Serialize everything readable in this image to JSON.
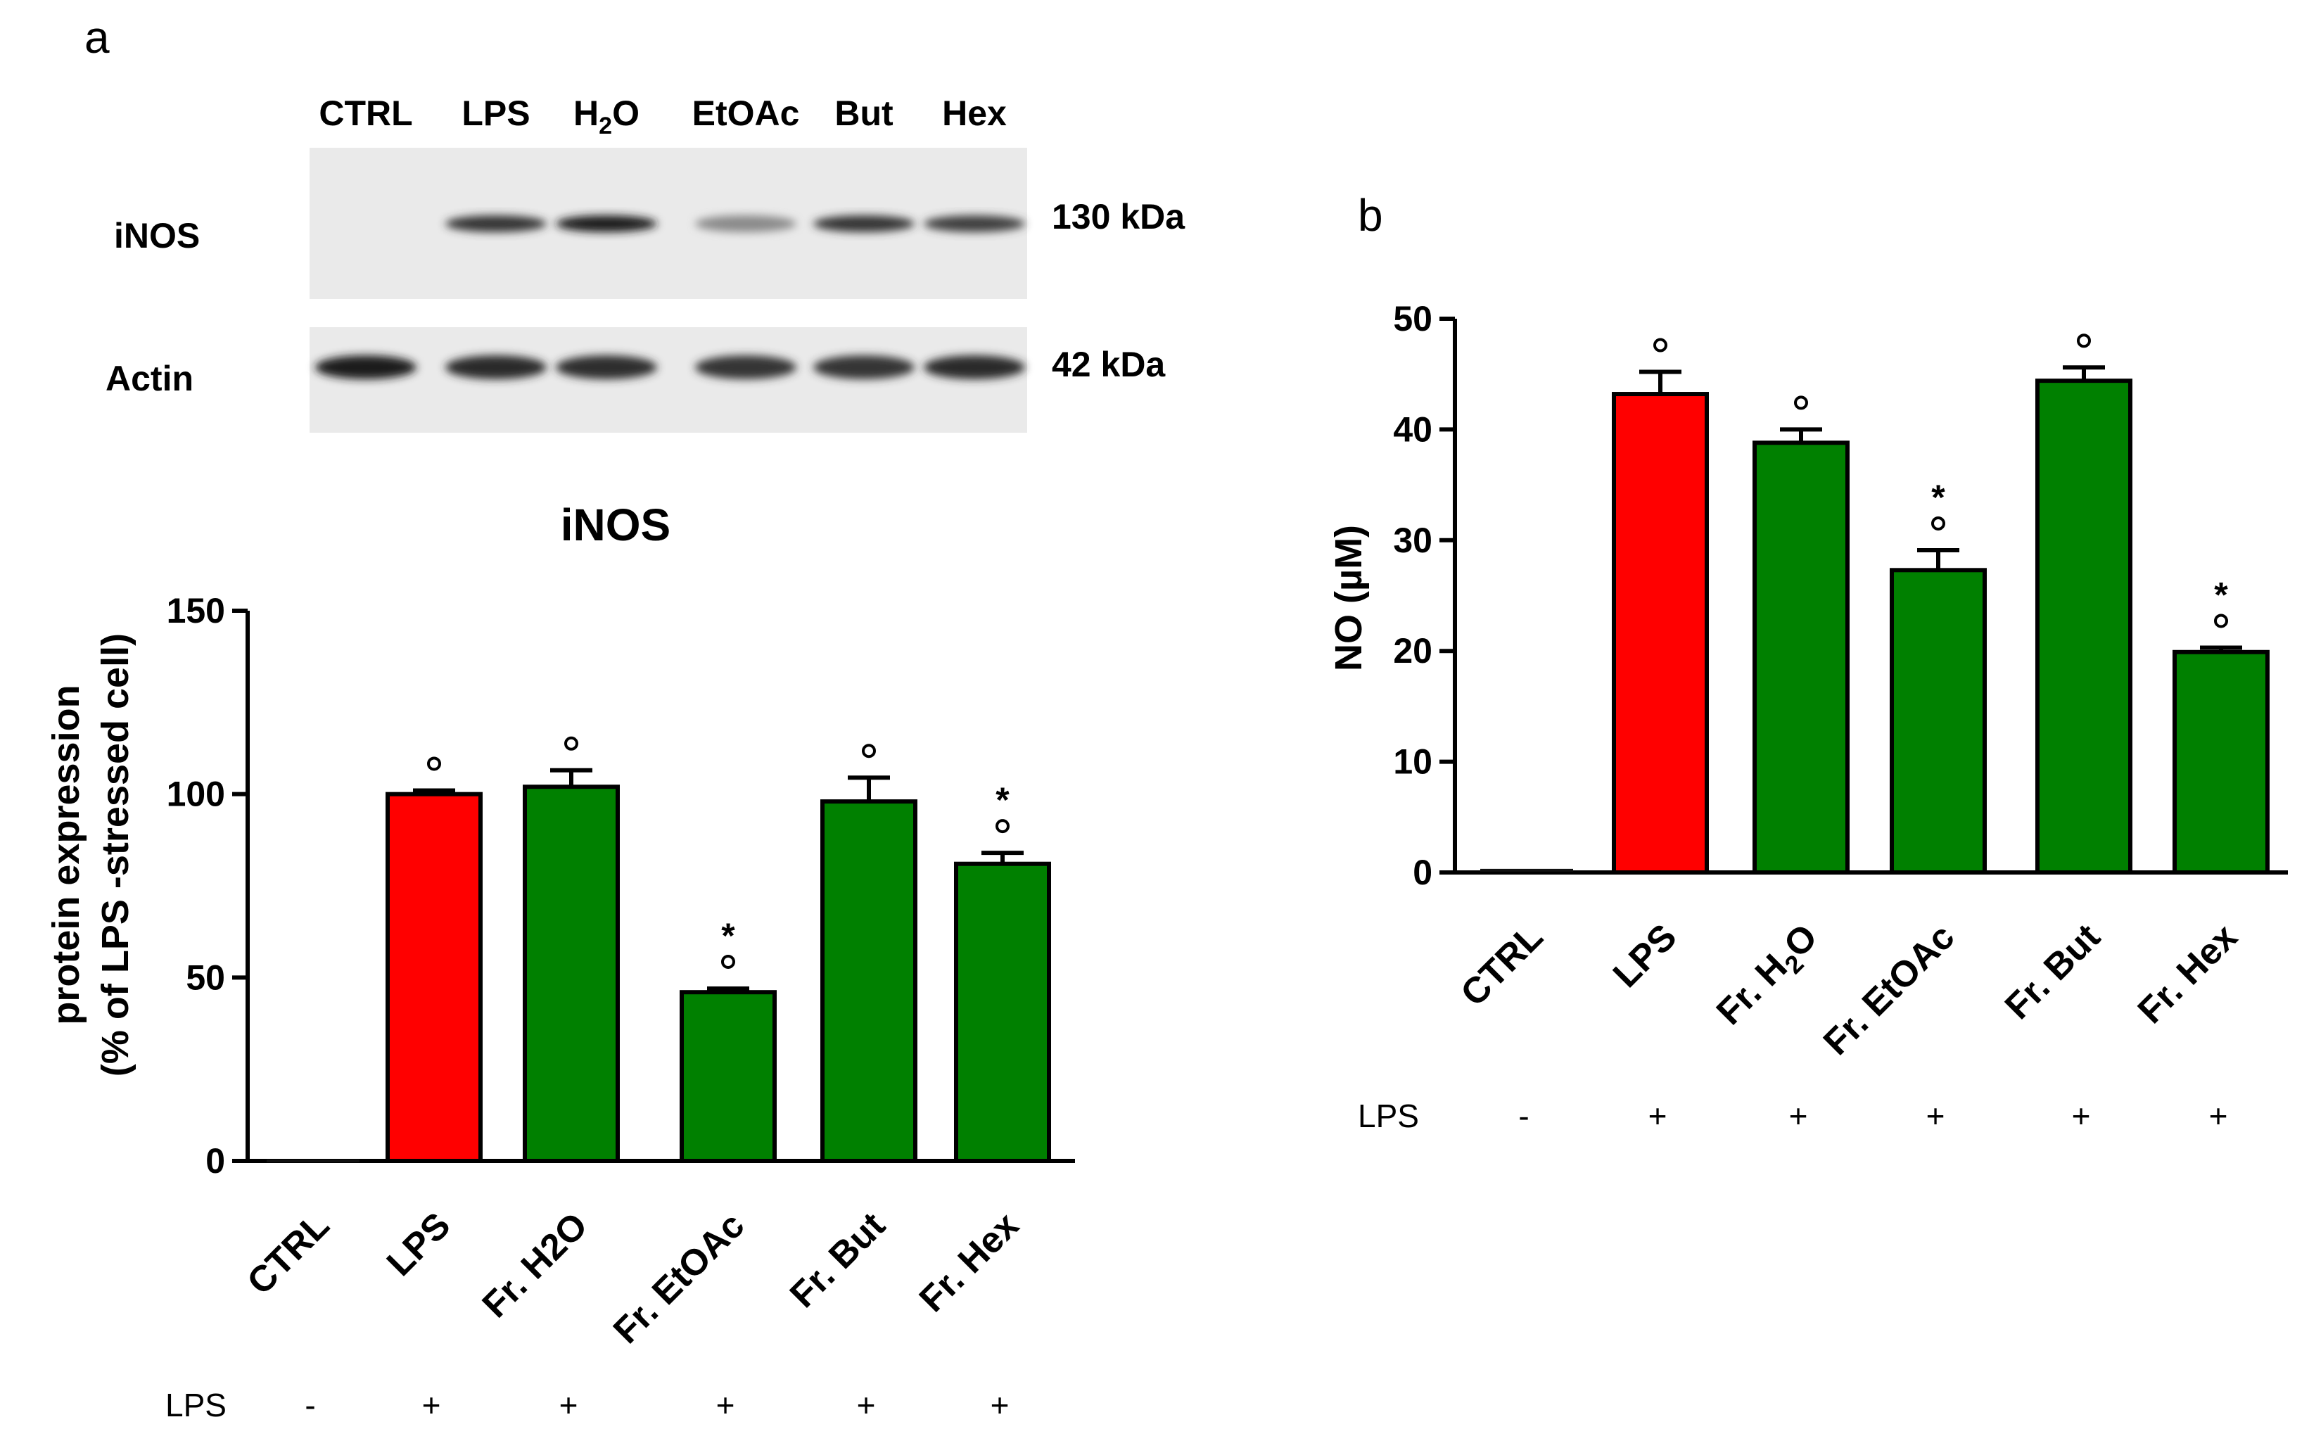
{
  "panel_a_label": "a",
  "panel_b_label": "b",
  "western_blot": {
    "lanes": [
      "CTRL",
      "LPS",
      "H",
      "EtOAc",
      "But",
      "Hex"
    ],
    "lane_h2o_base": "H",
    "lane_h2o_sub": "2",
    "lane_h2o_tail": "O",
    "rows": [
      {
        "label": "iNOS",
        "kda": "130 kDa",
        "band_intensity": [
          0.0,
          0.85,
          0.95,
          0.45,
          0.85,
          0.8
        ]
      },
      {
        "label": "Actin",
        "kda": "42 kDa",
        "band_intensity": [
          0.95,
          0.9,
          0.88,
          0.85,
          0.85,
          0.9
        ]
      }
    ]
  },
  "chart_data": [
    {
      "type": "bar",
      "title": "iNOS",
      "ylabel_line1": "protein expression",
      "ylabel_line2": "(% of LPS -stressed cell)",
      "categories": [
        "CTRL",
        "LPS",
        "Fr. H2O",
        "Fr. EtOAc",
        "Fr. But",
        "Fr. Hex"
      ],
      "values": [
        0,
        100,
        102,
        46,
        98,
        81
      ],
      "errors": [
        0,
        1,
        4.5,
        1,
        6.5,
        3
      ],
      "ylim": [
        0,
        150
      ],
      "yticks": [
        "0",
        "50",
        "100",
        "150"
      ],
      "bar_colors": [
        "#1a8c1a",
        "#ff0000",
        "#008000",
        "#008000",
        "#008000",
        "#008000"
      ],
      "markers_circle": [
        false,
        true,
        true,
        true,
        true,
        true
      ],
      "markers_star": [
        false,
        false,
        false,
        true,
        false,
        true
      ],
      "lps_row_label": "LPS",
      "lps_signs": [
        "-",
        "+",
        "+",
        "+",
        "+",
        "+"
      ]
    },
    {
      "type": "bar",
      "title": "",
      "ylabel": "NO (µM)",
      "categories": [
        "CTRL",
        "LPS",
        "Fr. H2O",
        "Fr. EtOAc",
        "Fr. But",
        "Fr. Hex"
      ],
      "values": [
        0.2,
        43.2,
        38.8,
        27.3,
        44.4,
        19.9
      ],
      "errors": [
        0,
        2,
        1.2,
        1.8,
        1.2,
        0.4
      ],
      "ylim": [
        0,
        50
      ],
      "yticks": [
        "0",
        "10",
        "20",
        "30",
        "40",
        "50"
      ],
      "bar_colors": [
        "#1a8c1a",
        "#ff0000",
        "#008000",
        "#008000",
        "#008000",
        "#008000"
      ],
      "markers_circle": [
        false,
        true,
        true,
        true,
        true,
        true
      ],
      "markers_star": [
        false,
        false,
        false,
        true,
        false,
        true
      ],
      "lps_row_label": "LPS",
      "lps_signs": [
        "-",
        "+",
        "+",
        "+",
        "+",
        "+"
      ]
    }
  ],
  "symbols": {
    "circle": "°",
    "star": "*"
  }
}
